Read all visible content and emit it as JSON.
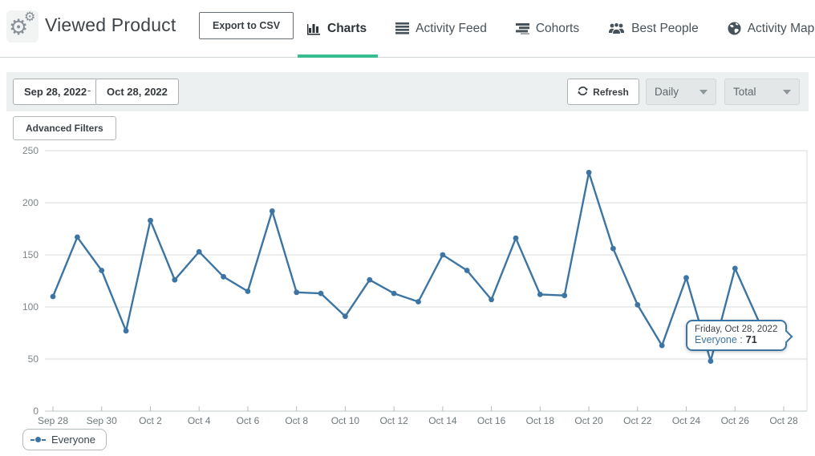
{
  "theme": {
    "accent_green": "#38bd90",
    "chart_blue": "#3c75a3"
  },
  "header": {
    "title": "Viewed Product",
    "export_button_label": "Export to CSV",
    "tabs": [
      {
        "label": "Charts",
        "icon": "bar-chart-icon",
        "active": true
      },
      {
        "label": "Activity Feed",
        "icon": "list-icon",
        "active": false
      },
      {
        "label": "Cohorts",
        "icon": "cohorts-icon",
        "active": false
      },
      {
        "label": "Best People",
        "icon": "people-icon",
        "active": false
      },
      {
        "label": "Activity Map",
        "icon": "globe-icon",
        "active": false
      }
    ]
  },
  "toolbar": {
    "date_start": "Sep 28, 2022",
    "date_separator": "-",
    "date_end": "Oct 28, 2022",
    "refresh_label": "Refresh",
    "interval_dropdown_value": "Daily",
    "metric_dropdown_value": "Total"
  },
  "filters": {
    "advanced_filters_label": "Advanced Filters"
  },
  "chart_data": {
    "type": "line",
    "x": [
      "Sep 28",
      "Sep 29",
      "Sep 30",
      "Oct 1",
      "Oct 2",
      "Oct 3",
      "Oct 4",
      "Oct 5",
      "Oct 6",
      "Oct 7",
      "Oct 8",
      "Oct 9",
      "Oct 10",
      "Oct 11",
      "Oct 12",
      "Oct 13",
      "Oct 14",
      "Oct 15",
      "Oct 16",
      "Oct 17",
      "Oct 18",
      "Oct 19",
      "Oct 20",
      "Oct 21",
      "Oct 22",
      "Oct 23",
      "Oct 24",
      "Oct 25",
      "Oct 26",
      "Oct 27",
      "Oct 28"
    ],
    "x_tick_labels": [
      "Sep 28",
      "Sep 30",
      "Oct 2",
      "Oct 4",
      "Oct 6",
      "Oct 8",
      "Oct 10",
      "Oct 12",
      "Oct 14",
      "Oct 16",
      "Oct 18",
      "Oct 20",
      "Oct 22",
      "Oct 24",
      "Oct 26",
      "Oct 28"
    ],
    "series": [
      {
        "name": "Everyone",
        "color": "#3c75a3",
        "values": [
          110,
          167,
          135,
          77,
          183,
          126,
          153,
          129,
          115,
          192,
          114,
          113,
          91,
          126,
          113,
          105,
          150,
          135,
          107,
          166,
          112,
          111,
          229,
          156,
          102,
          63,
          128,
          48,
          137,
          85,
          71
        ]
      }
    ],
    "ylim": [
      0,
      250
    ],
    "yticks": [
      0,
      50,
      100,
      150,
      200,
      250
    ],
    "grid": true,
    "legend_position": "bottom-left",
    "title": "Viewed Product",
    "xlabel": "",
    "ylabel": ""
  },
  "tooltip": {
    "date_line": "Friday, Oct 28, 2022",
    "series_label": "Everyone :",
    "value": "71"
  },
  "legend": {
    "label": "Everyone"
  }
}
